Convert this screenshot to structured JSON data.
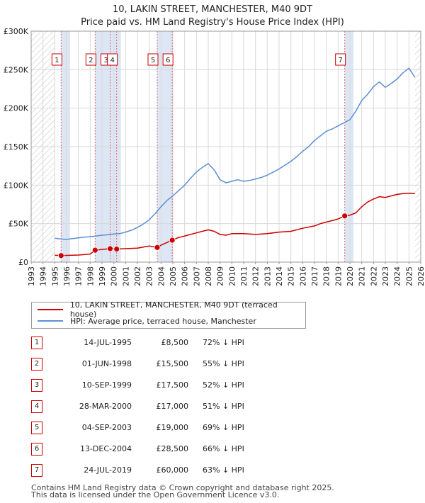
{
  "chart_data": {
    "type": "line",
    "title": "10, LAKIN STREET, MANCHESTER, M40 9DT",
    "subtitle": "Price paid vs. HM Land Registry's House Price Index (HPI)",
    "xlim": [
      1993,
      2026
    ],
    "ylim": [
      0,
      300000
    ],
    "ytick_values": [
      0,
      50000,
      100000,
      150000,
      200000,
      250000,
      300000
    ],
    "ytick_labels": [
      "£0",
      "£50K",
      "£100K",
      "£150K",
      "£200K",
      "£250K",
      "£300K"
    ],
    "xtick_labels": [
      "1993",
      "1994",
      "1995",
      "1996",
      "1997",
      "1998",
      "1999",
      "2000",
      "2001",
      "2002",
      "2003",
      "2004",
      "2005",
      "2006",
      "2007",
      "2008",
      "2009",
      "2010",
      "2011",
      "2012",
      "2013",
      "2014",
      "2015",
      "2016",
      "2017",
      "2018",
      "2019",
      "2020",
      "2021",
      "2022",
      "2023",
      "2024",
      "2025",
      "2026"
    ],
    "hatch_before": 1995.0,
    "hatch_after": 2025.5,
    "shaded_spans": [
      [
        1995.54,
        1996.3
      ],
      [
        1998.42,
        2000.6
      ],
      [
        2003.68,
        2005.0
      ],
      [
        2019.56,
        2020.3
      ]
    ],
    "series": [
      {
        "name": "10, LAKIN STREET, MANCHESTER, M40 9DT (terraced house)",
        "color": "#cc0000",
        "x": [
          1995.0,
          1995.54,
          1996.0,
          1997.0,
          1998.0,
          1998.42,
          1999.0,
          1999.69,
          2000.0,
          2000.24,
          2001.0,
          2002.0,
          2003.0,
          2003.68,
          2004.0,
          2004.95,
          2005.5,
          2006.0,
          2007.0,
          2007.5,
          2008.0,
          2008.5,
          2009.0,
          2009.5,
          2010.0,
          2011.0,
          2012.0,
          2013.0,
          2014.0,
          2015.0,
          2016.0,
          2017.0,
          2017.5,
          2018.0,
          2019.0,
          2019.56,
          2020.0,
          2020.5,
          2021.0,
          2021.5,
          2022.0,
          2022.5,
          2023.0,
          2023.5,
          2024.0,
          2024.5,
          2025.0,
          2025.5
        ],
        "y": [
          9000,
          8500,
          8700,
          9200,
          10500,
          15500,
          16500,
          17500,
          17800,
          17000,
          17500,
          18200,
          21000,
          19000,
          22000,
          28500,
          32000,
          34000,
          38000,
          40000,
          42000,
          40000,
          36000,
          35000,
          37000,
          37000,
          36000,
          37000,
          39000,
          40000,
          44000,
          47000,
          50000,
          52000,
          56000,
          60000,
          61000,
          64000,
          72000,
          78000,
          82000,
          85000,
          84000,
          86000,
          88000,
          89000,
          89500,
          89000
        ]
      },
      {
        "name": "HPI: Average price, terraced house, Manchester",
        "color": "#5b8fd2",
        "x": [
          1995.0,
          1995.5,
          1996.0,
          1996.5,
          1997.0,
          1997.5,
          1998.0,
          1998.5,
          1999.0,
          1999.5,
          2000.0,
          2000.5,
          2001.0,
          2001.5,
          2002.0,
          2002.5,
          2003.0,
          2003.5,
          2004.0,
          2004.5,
          2005.0,
          2005.5,
          2006.0,
          2006.5,
          2007.0,
          2007.5,
          2008.0,
          2008.5,
          2009.0,
          2009.5,
          2010.0,
          2010.5,
          2011.0,
          2011.5,
          2012.0,
          2012.5,
          2013.0,
          2013.5,
          2014.0,
          2014.5,
          2015.0,
          2015.5,
          2016.0,
          2016.5,
          2017.0,
          2017.5,
          2018.0,
          2018.5,
          2019.0,
          2019.5,
          2020.0,
          2020.5,
          2021.0,
          2021.5,
          2022.0,
          2022.5,
          2023.0,
          2023.5,
          2024.0,
          2024.5,
          2025.0,
          2025.5
        ],
        "y": [
          31000,
          30000,
          29500,
          30500,
          31500,
          32500,
          33000,
          34000,
          35000,
          35500,
          36500,
          37000,
          39000,
          41500,
          45000,
          49500,
          55000,
          63000,
          72000,
          80000,
          86000,
          93000,
          100000,
          109000,
          117000,
          123000,
          128000,
          120000,
          107000,
          103000,
          105000,
          107000,
          105000,
          106000,
          108000,
          110000,
          113000,
          117000,
          121000,
          126000,
          131000,
          137000,
          144000,
          150000,
          158000,
          164000,
          170000,
          173000,
          177000,
          181000,
          185000,
          196000,
          210000,
          218000,
          228000,
          234000,
          227000,
          232000,
          238000,
          246000,
          252000,
          240000
        ]
      }
    ],
    "markers": [
      {
        "label": "1",
        "x": 1995.54,
        "y": 8500
      },
      {
        "label": "2",
        "x": 1998.42,
        "y": 15500
      },
      {
        "label": "3",
        "x": 1999.69,
        "y": 17500
      },
      {
        "label": "4",
        "x": 2000.24,
        "y": 17000
      },
      {
        "label": "5",
        "x": 2003.68,
        "y": 19000
      },
      {
        "label": "6",
        "x": 2004.95,
        "y": 28500
      },
      {
        "label": "7",
        "x": 2019.56,
        "y": 60000
      }
    ]
  },
  "legend": {
    "property_label": "10, LAKIN STREET, MANCHESTER, M40 9DT (terraced house)",
    "hpi_label": "HPI: Average price, terraced house, Manchester"
  },
  "transactions": [
    {
      "num": "1",
      "date": "14-JUL-1995",
      "price": "£8,500",
      "hpi": "72% ↓ HPI"
    },
    {
      "num": "2",
      "date": "01-JUN-1998",
      "price": "£15,500",
      "hpi": "55% ↓ HPI"
    },
    {
      "num": "3",
      "date": "10-SEP-1999",
      "price": "£17,500",
      "hpi": "52% ↓ HPI"
    },
    {
      "num": "4",
      "date": "28-MAR-2000",
      "price": "£17,000",
      "hpi": "51% ↓ HPI"
    },
    {
      "num": "5",
      "date": "04-SEP-2003",
      "price": "£19,000",
      "hpi": "69% ↓ HPI"
    },
    {
      "num": "6",
      "date": "13-DEC-2004",
      "price": "£28,500",
      "hpi": "66% ↓ HPI"
    },
    {
      "num": "7",
      "date": "24-JUL-2019",
      "price": "£60,000",
      "hpi": "63% ↓ HPI"
    }
  ],
  "footer": {
    "line1": "Contains HM Land Registry data © Crown copyright and database right 2025.",
    "line2": "This data is licensed under the Open Government Licence v3.0."
  }
}
